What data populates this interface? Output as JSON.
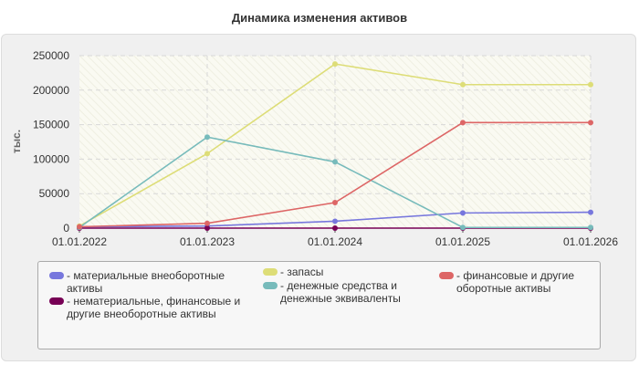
{
  "title": "Динамика изменения активов",
  "chart_data": {
    "type": "line",
    "ylabel": "тыс.",
    "ylim": [
      0,
      250000
    ],
    "yticks": [
      "0",
      "50000",
      "100000",
      "150000",
      "200000",
      "250000"
    ],
    "x": [
      "01.01.2022",
      "01.01.2023",
      "01.01.2024",
      "01.01.2025",
      "01.01.2026"
    ],
    "grid": true,
    "legend_position": "bottom",
    "series": [
      {
        "name": "материальные внеоборотные активы",
        "color": "#7777dd",
        "values": [
          2000,
          3000,
          10000,
          22000,
          23000
        ]
      },
      {
        "name": "нематериальные, финансовые и другие внеоборотные активы",
        "color": "#770055",
        "values": [
          0,
          0,
          0,
          0,
          0
        ]
      },
      {
        "name": "запасы",
        "color": "#dddd77",
        "values": [
          3000,
          108000,
          238000,
          208000,
          208000
        ]
      },
      {
        "name": "денежные средства и денежные эквиваленты",
        "color": "#77bbbb",
        "values": [
          1000,
          132000,
          96000,
          1000,
          1000
        ]
      },
      {
        "name": "финансовые и другие оборотные активы",
        "color": "#dd6666",
        "values": [
          2000,
          7000,
          37000,
          153000,
          153000
        ]
      }
    ]
  }
}
